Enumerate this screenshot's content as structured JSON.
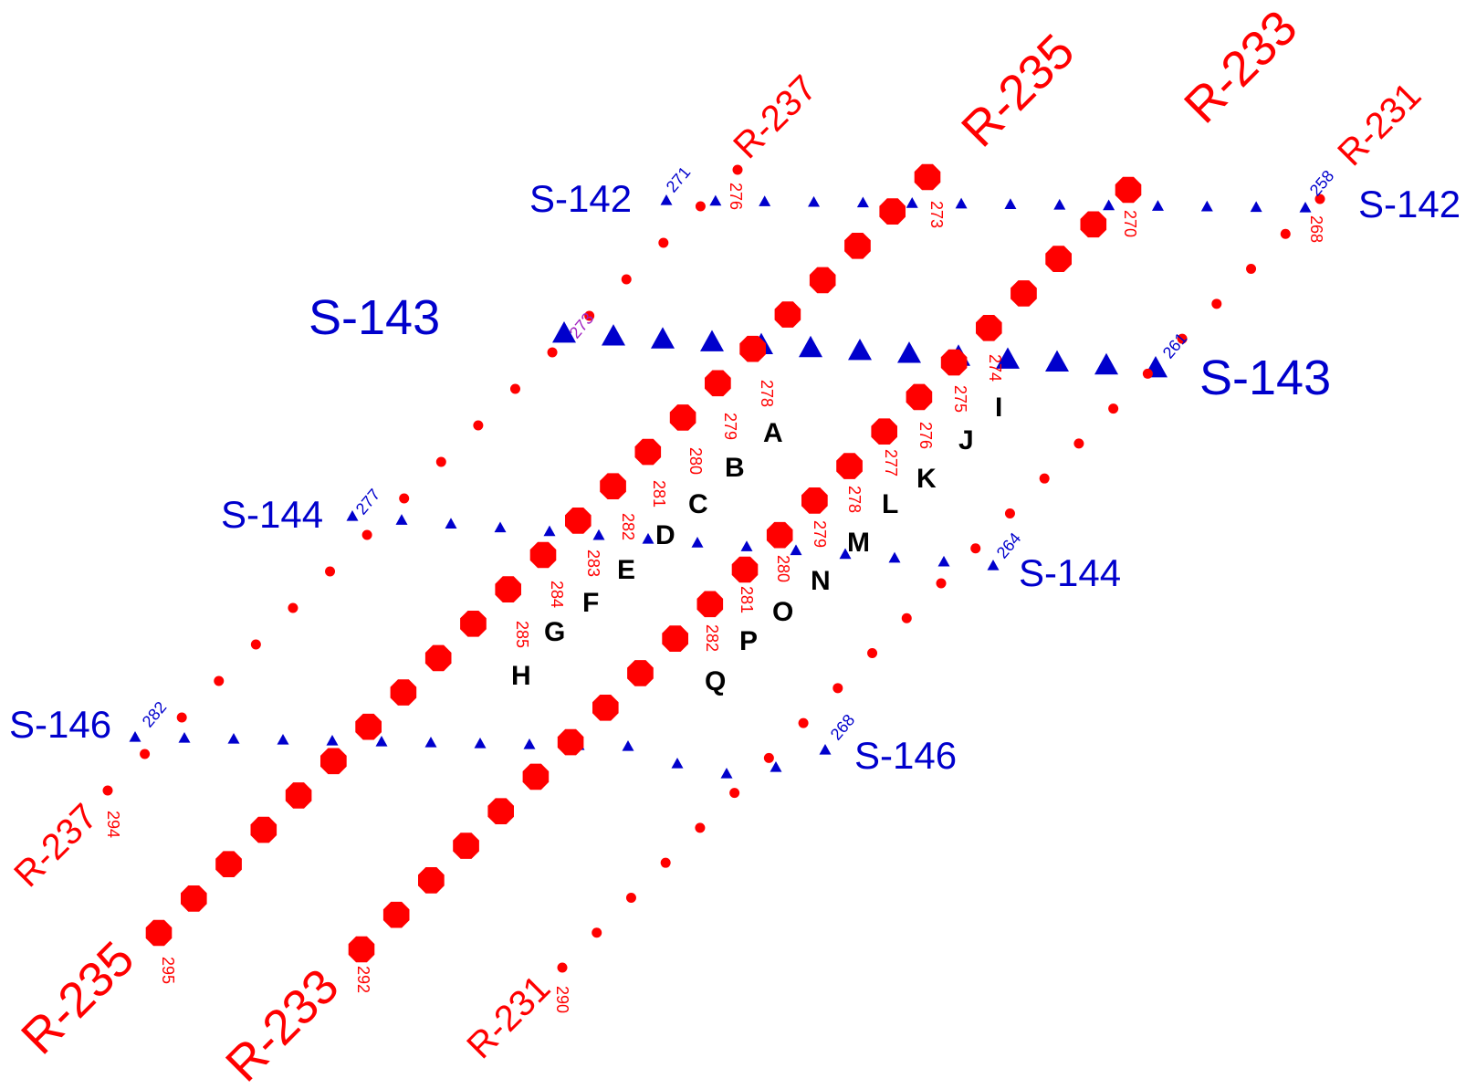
{
  "colors": {
    "receiver": "#ff0000",
    "source": "#0000cc",
    "letter": "#000000"
  },
  "receiver_lines": [
    {
      "id": "R-237",
      "start_station": "294",
      "end_station": "276"
    },
    {
      "id": "R-235",
      "start_station": "295",
      "end_station": "273"
    },
    {
      "id": "R-233",
      "start_station": "292",
      "end_station": "270"
    },
    {
      "id": "R-231",
      "start_station": "290",
      "end_station": "268"
    }
  ],
  "source_lines": [
    {
      "id": "S-142",
      "start_station": "271",
      "end_station": "258"
    },
    {
      "id": "S-143",
      "start_station": "273",
      "end_station": "261"
    },
    {
      "id": "S-144",
      "start_station": "277",
      "end_station": "264"
    },
    {
      "id": "S-146",
      "start_station": "282",
      "end_station": "268"
    }
  ],
  "points": [
    {
      "letter": "A",
      "station": "278"
    },
    {
      "letter": "B",
      "station": "279"
    },
    {
      "letter": "C",
      "station": "280"
    },
    {
      "letter": "D",
      "station": "281"
    },
    {
      "letter": "E",
      "station": "282"
    },
    {
      "letter": "F",
      "station": "283"
    },
    {
      "letter": "G",
      "station": "284"
    },
    {
      "letter": "H",
      "station": "285"
    },
    {
      "letter": "I",
      "station": "274"
    },
    {
      "letter": "J",
      "station": "275"
    },
    {
      "letter": "K",
      "station": "276"
    },
    {
      "letter": "L",
      "station": "277"
    },
    {
      "letter": "M",
      "station": "278"
    },
    {
      "letter": "N",
      "station": "279"
    },
    {
      "letter": "O",
      "station": "280"
    },
    {
      "letter": "P",
      "station": "281"
    },
    {
      "letter": "Q",
      "station": "282"
    }
  ]
}
